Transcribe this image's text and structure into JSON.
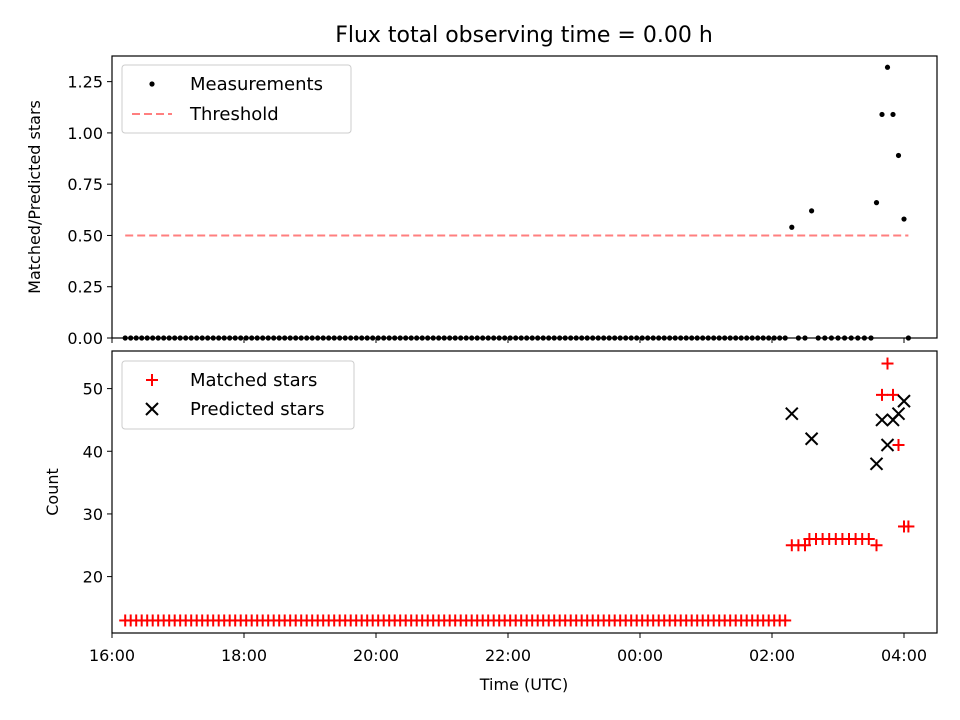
{
  "chart_data": [
    {
      "type": "scatter",
      "title": "Flux total observing time = 0.00 h",
      "xlabel": "",
      "ylabel": "Matched/Predicted stars",
      "xlim": [
        "16:00",
        "04:30"
      ],
      "ylim": [
        0,
        1.375
      ],
      "yticks": [
        "0.00",
        "0.25",
        "0.50",
        "0.75",
        "1.00",
        "1.25"
      ],
      "legend": {
        "placement": "top-left",
        "entries": [
          "Measurements",
          "Threshold"
        ]
      },
      "series": [
        {
          "name": "Measurements",
          "marker": "dot",
          "color": "#000000",
          "zero_run": {
            "start": "16:12",
            "end": "02:12",
            "step_minutes": 5,
            "y": 0
          },
          "points": [
            [
              "02:18",
              0.54
            ],
            [
              "02:24",
              0.0
            ],
            [
              "02:30",
              0.0
            ],
            [
              "02:36",
              0.62
            ],
            [
              "02:42",
              0.0
            ],
            [
              "02:48",
              0.0
            ],
            [
              "02:54",
              0.0
            ],
            [
              "03:00",
              0.0
            ],
            [
              "03:06",
              0.0
            ],
            [
              "03:12",
              0.0
            ],
            [
              "03:18",
              0.0
            ],
            [
              "03:24",
              0.0
            ],
            [
              "03:30",
              0.0
            ],
            [
              "03:35",
              0.66
            ],
            [
              "03:40",
              1.09
            ],
            [
              "03:45",
              1.32
            ],
            [
              "03:50",
              1.09
            ],
            [
              "03:55",
              0.89
            ],
            [
              "04:00",
              0.58
            ],
            [
              "04:04",
              0.0
            ]
          ]
        },
        {
          "name": "Threshold",
          "style": "dashed",
          "color": "#ff7f7f",
          "x": [
            "16:12",
            "04:04"
          ],
          "y": [
            0.5,
            0.5
          ]
        }
      ]
    },
    {
      "type": "scatter",
      "title": "",
      "xlabel": "Time (UTC)",
      "ylabel": "Count",
      "xlim": [
        "16:00",
        "04:30"
      ],
      "ylim": [
        11,
        56
      ],
      "yticks": [
        "20",
        "30",
        "40",
        "50"
      ],
      "xticks": [
        "16:00",
        "18:00",
        "20:00",
        "22:00",
        "00:00",
        "02:00",
        "04:00"
      ],
      "legend": {
        "placement": "top-left",
        "entries": [
          "Matched stars",
          "Predicted stars"
        ]
      },
      "series": [
        {
          "name": "Matched stars",
          "marker": "plus",
          "color": "#ff0000",
          "constant_run": {
            "start": "16:12",
            "end": "02:12",
            "step_minutes": 5,
            "y": 13
          },
          "points": [
            [
              "02:18",
              25
            ],
            [
              "02:24",
              25
            ],
            [
              "02:30",
              25
            ],
            [
              "02:34",
              26
            ],
            [
              "02:40",
              26
            ],
            [
              "02:46",
              26
            ],
            [
              "02:52",
              26
            ],
            [
              "02:58",
              26
            ],
            [
              "03:04",
              26
            ],
            [
              "03:10",
              26
            ],
            [
              "03:16",
              26
            ],
            [
              "03:22",
              26
            ],
            [
              "03:28",
              26
            ],
            [
              "03:35",
              25
            ],
            [
              "03:40",
              49
            ],
            [
              "03:45",
              54
            ],
            [
              "03:50",
              49
            ],
            [
              "03:55",
              41
            ],
            [
              "04:00",
              28
            ],
            [
              "04:04",
              28
            ]
          ]
        },
        {
          "name": "Predicted stars",
          "marker": "x",
          "color": "#000000",
          "points": [
            [
              "02:18",
              46
            ],
            [
              "02:36",
              42
            ],
            [
              "03:35",
              38
            ],
            [
              "03:40",
              45
            ],
            [
              "03:45",
              41
            ],
            [
              "03:50",
              45
            ],
            [
              "03:55",
              46
            ],
            [
              "04:00",
              48
            ]
          ]
        }
      ]
    }
  ]
}
